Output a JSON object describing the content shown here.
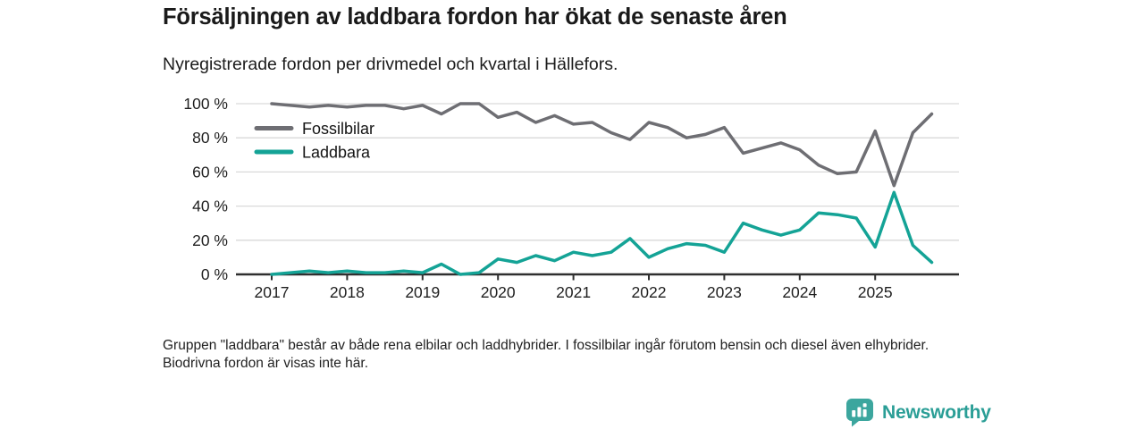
{
  "title": "Försäljningen av laddbara fordon har ökat de senaste åren",
  "subtitle": "Nyregistrerade fordon per drivmedel och kvartal i Hällefors.",
  "footnote": "Gruppen \"laddbara\" består av både rena elbilar och laddhybrider. I fossilbilar ingår förutom bensin och diesel även elhybrider. Biodrivna fordon är visas inte här.",
  "brand": {
    "name": "Newsworthy",
    "color": "#3ca69e",
    "text_color": "#2a9e96"
  },
  "colors": {
    "grid": "#d9d9d9",
    "axis": "#2f2f2f",
    "fossil": "#6e6e73",
    "laddbara": "#14a396"
  },
  "chart_data": {
    "type": "line",
    "title": "Försäljningen av laddbara fordon har ökat de senaste åren",
    "subtitle": "Nyregistrerade fordon per drivmedel och kvartal i Hällefors.",
    "unit": "%",
    "ylim": [
      0,
      100
    ],
    "yticks": [
      0,
      20,
      40,
      60,
      80,
      100
    ],
    "ytick_suffix": " %",
    "grid": true,
    "legend_position": "top-left-inside",
    "x_years": [
      "2017",
      "2018",
      "2019",
      "2020",
      "2021",
      "2022",
      "2023",
      "2024",
      "2025"
    ],
    "categories": [
      "2017 Q1",
      "2017 Q2",
      "2017 Q3",
      "2017 Q4",
      "2018 Q1",
      "2018 Q2",
      "2018 Q3",
      "2018 Q4",
      "2019 Q1",
      "2019 Q2",
      "2019 Q3",
      "2019 Q4",
      "2020 Q1",
      "2020 Q2",
      "2020 Q3",
      "2020 Q4",
      "2021 Q1",
      "2021 Q2",
      "2021 Q3",
      "2021 Q4",
      "2022 Q1",
      "2022 Q2",
      "2022 Q3",
      "2022 Q4",
      "2023 Q1",
      "2023 Q2",
      "2023 Q3",
      "2023 Q4",
      "2024 Q1",
      "2024 Q2",
      "2024 Q3",
      "2024 Q4",
      "2025 Q1",
      "2025 Q2",
      "2025 Q3",
      "2025 Q4"
    ],
    "series": [
      {
        "name": "Fossilbilar",
        "color": "#6e6e73",
        "values": [
          100,
          99,
          98,
          99,
          98,
          99,
          99,
          97,
          99,
          94,
          100,
          100,
          92,
          95,
          89,
          93,
          88,
          89,
          83,
          79,
          89,
          86,
          80,
          82,
          86,
          71,
          74,
          77,
          73,
          64,
          59,
          60,
          84,
          52,
          83,
          94
        ]
      },
      {
        "name": "Laddbara",
        "color": "#14a396",
        "values": [
          0,
          1,
          2,
          1,
          2,
          1,
          1,
          2,
          1,
          6,
          0,
          1,
          9,
          7,
          11,
          8,
          13,
          11,
          13,
          21,
          10,
          15,
          18,
          17,
          13,
          30,
          26,
          23,
          26,
          36,
          35,
          33,
          16,
          48,
          17,
          7
        ]
      }
    ]
  }
}
